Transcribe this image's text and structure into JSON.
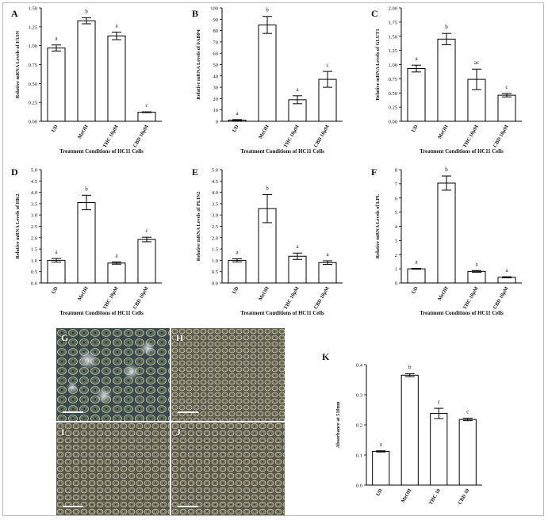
{
  "figure": {
    "micrograph_labels": [
      "G",
      "H",
      "I",
      "J"
    ],
    "colors": {
      "bar_fill": "#ffffff",
      "bar_stroke": "#000000",
      "axis": "#000000"
    }
  },
  "chart_data": [
    {
      "panel": "A",
      "type": "bar",
      "categories": [
        "UD",
        "MeOH",
        "THC 10µM",
        "CBD 10µM"
      ],
      "values": [
        0.97,
        1.33,
        1.13,
        0.12
      ],
      "errors": [
        0.04,
        0.04,
        0.05,
        0.005
      ],
      "letters": [
        "a",
        "b",
        "a",
        "c"
      ],
      "xlabel": "Treatment Conditions of HC11 Cells",
      "ylabel": "Relative mRNA Levels of FASN",
      "ylim": [
        0,
        1.5
      ],
      "yticks": [
        0.0,
        0.25,
        0.5,
        0.75,
        1.0,
        1.25,
        1.5
      ],
      "ytick_labels": [
        "0.00",
        "0.25",
        "0.50",
        "0.75",
        "1.00",
        "1.25",
        "1.50"
      ]
    },
    {
      "panel": "B",
      "type": "bar",
      "categories": [
        "UD",
        "MeOH",
        "THC 10µM",
        "CBD 10µM"
      ],
      "values": [
        1,
        85,
        19,
        37
      ],
      "errors": [
        0.5,
        7.5,
        3.5,
        7
      ],
      "letters": [
        "a",
        "b",
        "a",
        "c"
      ],
      "xlabel": "Treatment Conditions of HC11 Cells",
      "ylabel": "Relative mRNA Levels of FABP4",
      "ylim": [
        0,
        100
      ],
      "yticks": [
        0,
        10,
        20,
        30,
        40,
        50,
        60,
        70,
        80,
        90,
        100
      ],
      "ytick_labels": [
        "0",
        "10",
        "20",
        "30",
        "40",
        "50",
        "60",
        "70",
        "80",
        "90",
        "100"
      ]
    },
    {
      "panel": "C",
      "type": "bar",
      "categories": [
        "UD",
        "MeOH",
        "THC 10µM",
        "CBD 10µM"
      ],
      "values": [
        0.93,
        1.45,
        0.74,
        0.46
      ],
      "errors": [
        0.06,
        0.1,
        0.18,
        0.03
      ],
      "letters": [
        "a",
        "b",
        "ac",
        "c"
      ],
      "xlabel": "Treatment Conditions of HC11 Cells",
      "ylabel": "Relative mRNA Levels of GLUT1",
      "ylim": [
        0,
        2.0
      ],
      "yticks": [
        0.0,
        0.25,
        0.5,
        0.75,
        1.0,
        1.25,
        1.5,
        1.75,
        2.0
      ],
      "ytick_labels": [
        "0.00",
        "0.25",
        "0.50",
        "0.75",
        "1.00",
        "1.25",
        "1.50",
        "1.75",
        "2.00"
      ]
    },
    {
      "panel": "D",
      "type": "bar",
      "categories": [
        "UD",
        "MeOH",
        "THC 10µM",
        "CBD 10µM"
      ],
      "values": [
        1.0,
        3.55,
        0.88,
        1.92
      ],
      "errors": [
        0.08,
        0.32,
        0.05,
        0.1
      ],
      "letters": [
        "a",
        "b",
        "a",
        "c"
      ],
      "xlabel": "Treatment Conditions of HC11 Cells",
      "ylabel": "Relative mRNA Levels of HK2",
      "ylim": [
        0,
        5.0
      ],
      "yticks": [
        0.0,
        0.5,
        1.0,
        1.5,
        2.0,
        2.5,
        3.0,
        3.5,
        4.0,
        4.5,
        5.0
      ],
      "ytick_labels": [
        "0.0",
        "0.5",
        "1.0",
        "1.5",
        "2.0",
        "2.5",
        "3.0",
        "3.5",
        "4.0",
        "4.5",
        "5.0"
      ]
    },
    {
      "panel": "E",
      "type": "bar",
      "categories": [
        "UD",
        "MeOH",
        "THC 10µM",
        "CBD 10µM"
      ],
      "values": [
        1.0,
        3.28,
        1.18,
        0.9
      ],
      "errors": [
        0.07,
        0.62,
        0.14,
        0.08
      ],
      "letters": [
        "a",
        "b",
        "a",
        "a"
      ],
      "xlabel": "Treatment Conditions of HC11 Cells",
      "ylabel": "Relative mRNA Levels of PLIN2",
      "ylim": [
        0,
        5.0
      ],
      "yticks": [
        0.0,
        0.5,
        1.0,
        1.5,
        2.0,
        2.5,
        3.0,
        3.5,
        4.0,
        4.5,
        5.0
      ],
      "ytick_labels": [
        "0.0",
        "0.5",
        "1.0",
        "1.5",
        "2.0",
        "2.5",
        "3.0",
        "3.5",
        "4.0",
        "4.5",
        "5.0"
      ]
    },
    {
      "panel": "F",
      "type": "bar",
      "categories": [
        "UD",
        "MeOH",
        "THC 10µM",
        "CBD 10µM"
      ],
      "values": [
        1.0,
        7.05,
        0.82,
        0.4
      ],
      "errors": [
        0.03,
        0.5,
        0.06,
        0.04
      ],
      "letters": [
        "a",
        "b",
        "a",
        "a"
      ],
      "xlabel": "Treatment Conditions of HC11 Cells",
      "ylabel": "Relative mRNA Levels of LPL",
      "ylim": [
        0,
        8
      ],
      "yticks": [
        0,
        1,
        2,
        3,
        4,
        5,
        6,
        7,
        8
      ],
      "ytick_labels": [
        "0",
        "1",
        "2",
        "3",
        "4",
        "5",
        "6",
        "7",
        "8"
      ]
    },
    {
      "panel": "K",
      "type": "bar",
      "categories": [
        "UD",
        "MeOH",
        "THC 10",
        "CBD 10"
      ],
      "values": [
        0.112,
        0.365,
        0.238,
        0.218
      ],
      "errors": [
        0.002,
        0.005,
        0.017,
        0.004
      ],
      "letters": [
        "a",
        "b",
        "c",
        "c"
      ],
      "xlabel": "Conditions of HC11 Cells",
      "ylabel": "Absorbance at 510nm",
      "ylim": [
        0,
        0.4
      ],
      "yticks": [
        0.0,
        0.1,
        0.2,
        0.3,
        0.4
      ],
      "ytick_labels": [
        "0.0",
        "0.1",
        "0.2",
        "0.3",
        "0.4"
      ]
    }
  ]
}
